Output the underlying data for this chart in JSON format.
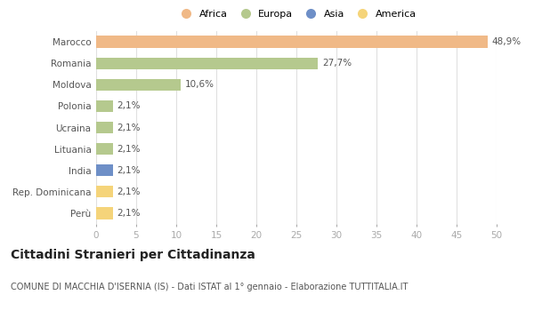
{
  "categories": [
    "Marocco",
    "Romania",
    "Moldova",
    "Polonia",
    "Ucraina",
    "Lituania",
    "India",
    "Rep. Dominicana",
    "Perù"
  ],
  "values": [
    48.9,
    27.7,
    10.6,
    2.1,
    2.1,
    2.1,
    2.1,
    2.1,
    2.1
  ],
  "labels": [
    "48,9%",
    "27,7%",
    "10,6%",
    "2,1%",
    "2,1%",
    "2,1%",
    "2,1%",
    "2,1%",
    "2,1%"
  ],
  "colors": [
    "#f0b987",
    "#b5c98e",
    "#b5c98e",
    "#b5c98e",
    "#b5c98e",
    "#b5c98e",
    "#6e8fc7",
    "#f5d47a",
    "#f5d47a"
  ],
  "legend_labels": [
    "Africa",
    "Europa",
    "Asia",
    "America"
  ],
  "legend_colors": [
    "#f0b987",
    "#b5c98e",
    "#6e8fc7",
    "#f5d47a"
  ],
  "title": "Cittadini Stranieri per Cittadinanza",
  "subtitle": "COMUNE DI MACCHIA D'ISERNIA (IS) - Dati ISTAT al 1° gennaio - Elaborazione TUTTITALIA.IT",
  "xlim": [
    0,
    50
  ],
  "xticks": [
    0,
    5,
    10,
    15,
    20,
    25,
    30,
    35,
    40,
    45,
    50
  ],
  "background_color": "#ffffff",
  "grid_color": "#e0e0e0",
  "bar_height": 0.55,
  "title_fontsize": 10,
  "subtitle_fontsize": 7,
  "label_fontsize": 7.5,
  "tick_fontsize": 7.5,
  "legend_fontsize": 8
}
